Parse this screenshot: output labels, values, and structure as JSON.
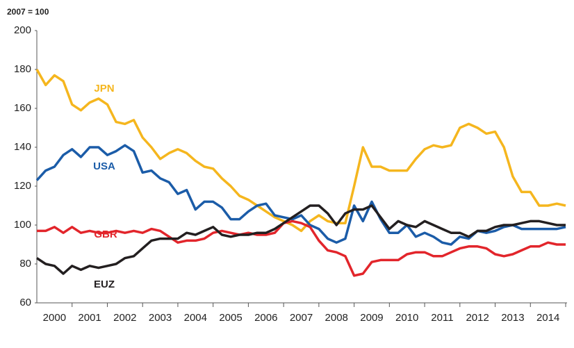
{
  "chart_data": {
    "type": "line",
    "subtitle": "2007 = 100",
    "x": [
      2000,
      2000.25,
      2000.5,
      2000.75,
      2001,
      2001.25,
      2001.5,
      2001.75,
      2002,
      2002.25,
      2002.5,
      2002.75,
      2003,
      2003.25,
      2003.5,
      2003.75,
      2004,
      2004.25,
      2004.5,
      2004.75,
      2005,
      2005.25,
      2005.5,
      2005.75,
      2006,
      2006.25,
      2006.5,
      2006.75,
      2007,
      2007.25,
      2007.5,
      2007.75,
      2008,
      2008.25,
      2008.5,
      2008.75,
      2009,
      2009.25,
      2009.5,
      2009.75,
      2010,
      2010.25,
      2010.5,
      2010.75,
      2011,
      2011.25,
      2011.5,
      2011.75,
      2012,
      2012.25,
      2012.5,
      2012.75,
      2013,
      2013.25,
      2013.5,
      2013.75,
      2014,
      2014.25,
      2014.5,
      2014.75,
      2015
    ],
    "series": [
      {
        "name": "JPN",
        "color": "#f5b61e",
        "values": [
          180,
          172,
          177,
          174,
          162,
          159,
          163,
          165,
          162,
          153,
          152,
          154,
          145,
          140,
          134,
          137,
          139,
          137,
          133,
          130,
          129,
          124,
          120,
          115,
          113,
          110,
          107,
          104,
          102,
          100,
          97,
          102,
          105,
          102,
          101,
          101,
          120,
          140,
          130,
          130,
          128,
          128,
          128,
          134,
          139,
          141,
          140,
          141,
          150,
          152,
          150,
          147,
          148,
          140,
          125,
          117,
          117,
          110,
          110,
          111,
          110
        ]
      },
      {
        "name": "USA",
        "color": "#1b5ca8",
        "values": [
          123,
          128,
          130,
          136,
          139,
          135,
          140,
          140,
          136,
          138,
          141,
          138,
          127,
          128,
          124,
          122,
          116,
          118,
          108,
          112,
          112,
          109,
          103,
          103,
          107,
          110,
          111,
          105,
          104,
          103,
          105,
          100,
          98,
          93,
          91,
          93,
          110,
          102,
          112,
          103,
          96,
          96,
          100,
          94,
          96,
          94,
          91,
          90,
          94,
          93,
          97,
          96,
          97,
          99,
          100,
          98,
          98,
          98,
          98,
          98,
          99
        ]
      },
      {
        "name": "GBR",
        "color": "#e2252b",
        "values": [
          97,
          97,
          99,
          96,
          99,
          96,
          97,
          96,
          96,
          97,
          96,
          97,
          96,
          98,
          97,
          94,
          91,
          92,
          92,
          93,
          96,
          97,
          96,
          95,
          96,
          95,
          95,
          96,
          101,
          102,
          101,
          99,
          92,
          87,
          86,
          84,
          74,
          75,
          81,
          82,
          82,
          82,
          85,
          86,
          86,
          84,
          84,
          86,
          88,
          89,
          89,
          88,
          85,
          84,
          85,
          87,
          89,
          89,
          91,
          90,
          90
        ]
      },
      {
        "name": "EUZ",
        "color": "#231f20",
        "values": [
          83,
          80,
          79,
          75,
          79,
          77,
          79,
          78,
          79,
          80,
          83,
          84,
          88,
          92,
          93,
          93,
          93,
          96,
          95,
          97,
          99,
          95,
          94,
          95,
          95,
          96,
          96,
          98,
          101,
          104,
          107,
          110,
          110,
          106,
          100,
          106,
          108,
          108,
          110,
          104,
          98,
          102,
          100,
          99,
          102,
          100,
          98,
          96,
          96,
          94,
          97,
          97,
          99,
          100,
          100,
          101,
          102,
          102,
          101,
          100,
          100
        ]
      }
    ],
    "xlim": [
      2000,
      2015
    ],
    "xticks": [
      {
        "value": 2000.5,
        "label": "2000"
      },
      {
        "value": 2001.5,
        "label": "2001"
      },
      {
        "value": 2002.5,
        "label": "2002"
      },
      {
        "value": 2003.5,
        "label": "2003"
      },
      {
        "value": 2004.5,
        "label": "2004"
      },
      {
        "value": 2005.5,
        "label": "2005"
      },
      {
        "value": 2006.5,
        "label": "2006"
      },
      {
        "value": 2007.5,
        "label": "2007"
      },
      {
        "value": 2008.5,
        "label": "2008"
      },
      {
        "value": 2009.5,
        "label": "2009"
      },
      {
        "value": 2010.5,
        "label": "2010"
      },
      {
        "value": 2011.5,
        "label": "2011"
      },
      {
        "value": 2012.5,
        "label": "2012"
      },
      {
        "value": 2013.5,
        "label": "2013"
      },
      {
        "value": 2014.5,
        "label": "2014"
      }
    ],
    "ylim": [
      60,
      200
    ],
    "yticks": [
      60,
      80,
      100,
      120,
      140,
      160,
      180,
      200
    ],
    "grid": false
  }
}
